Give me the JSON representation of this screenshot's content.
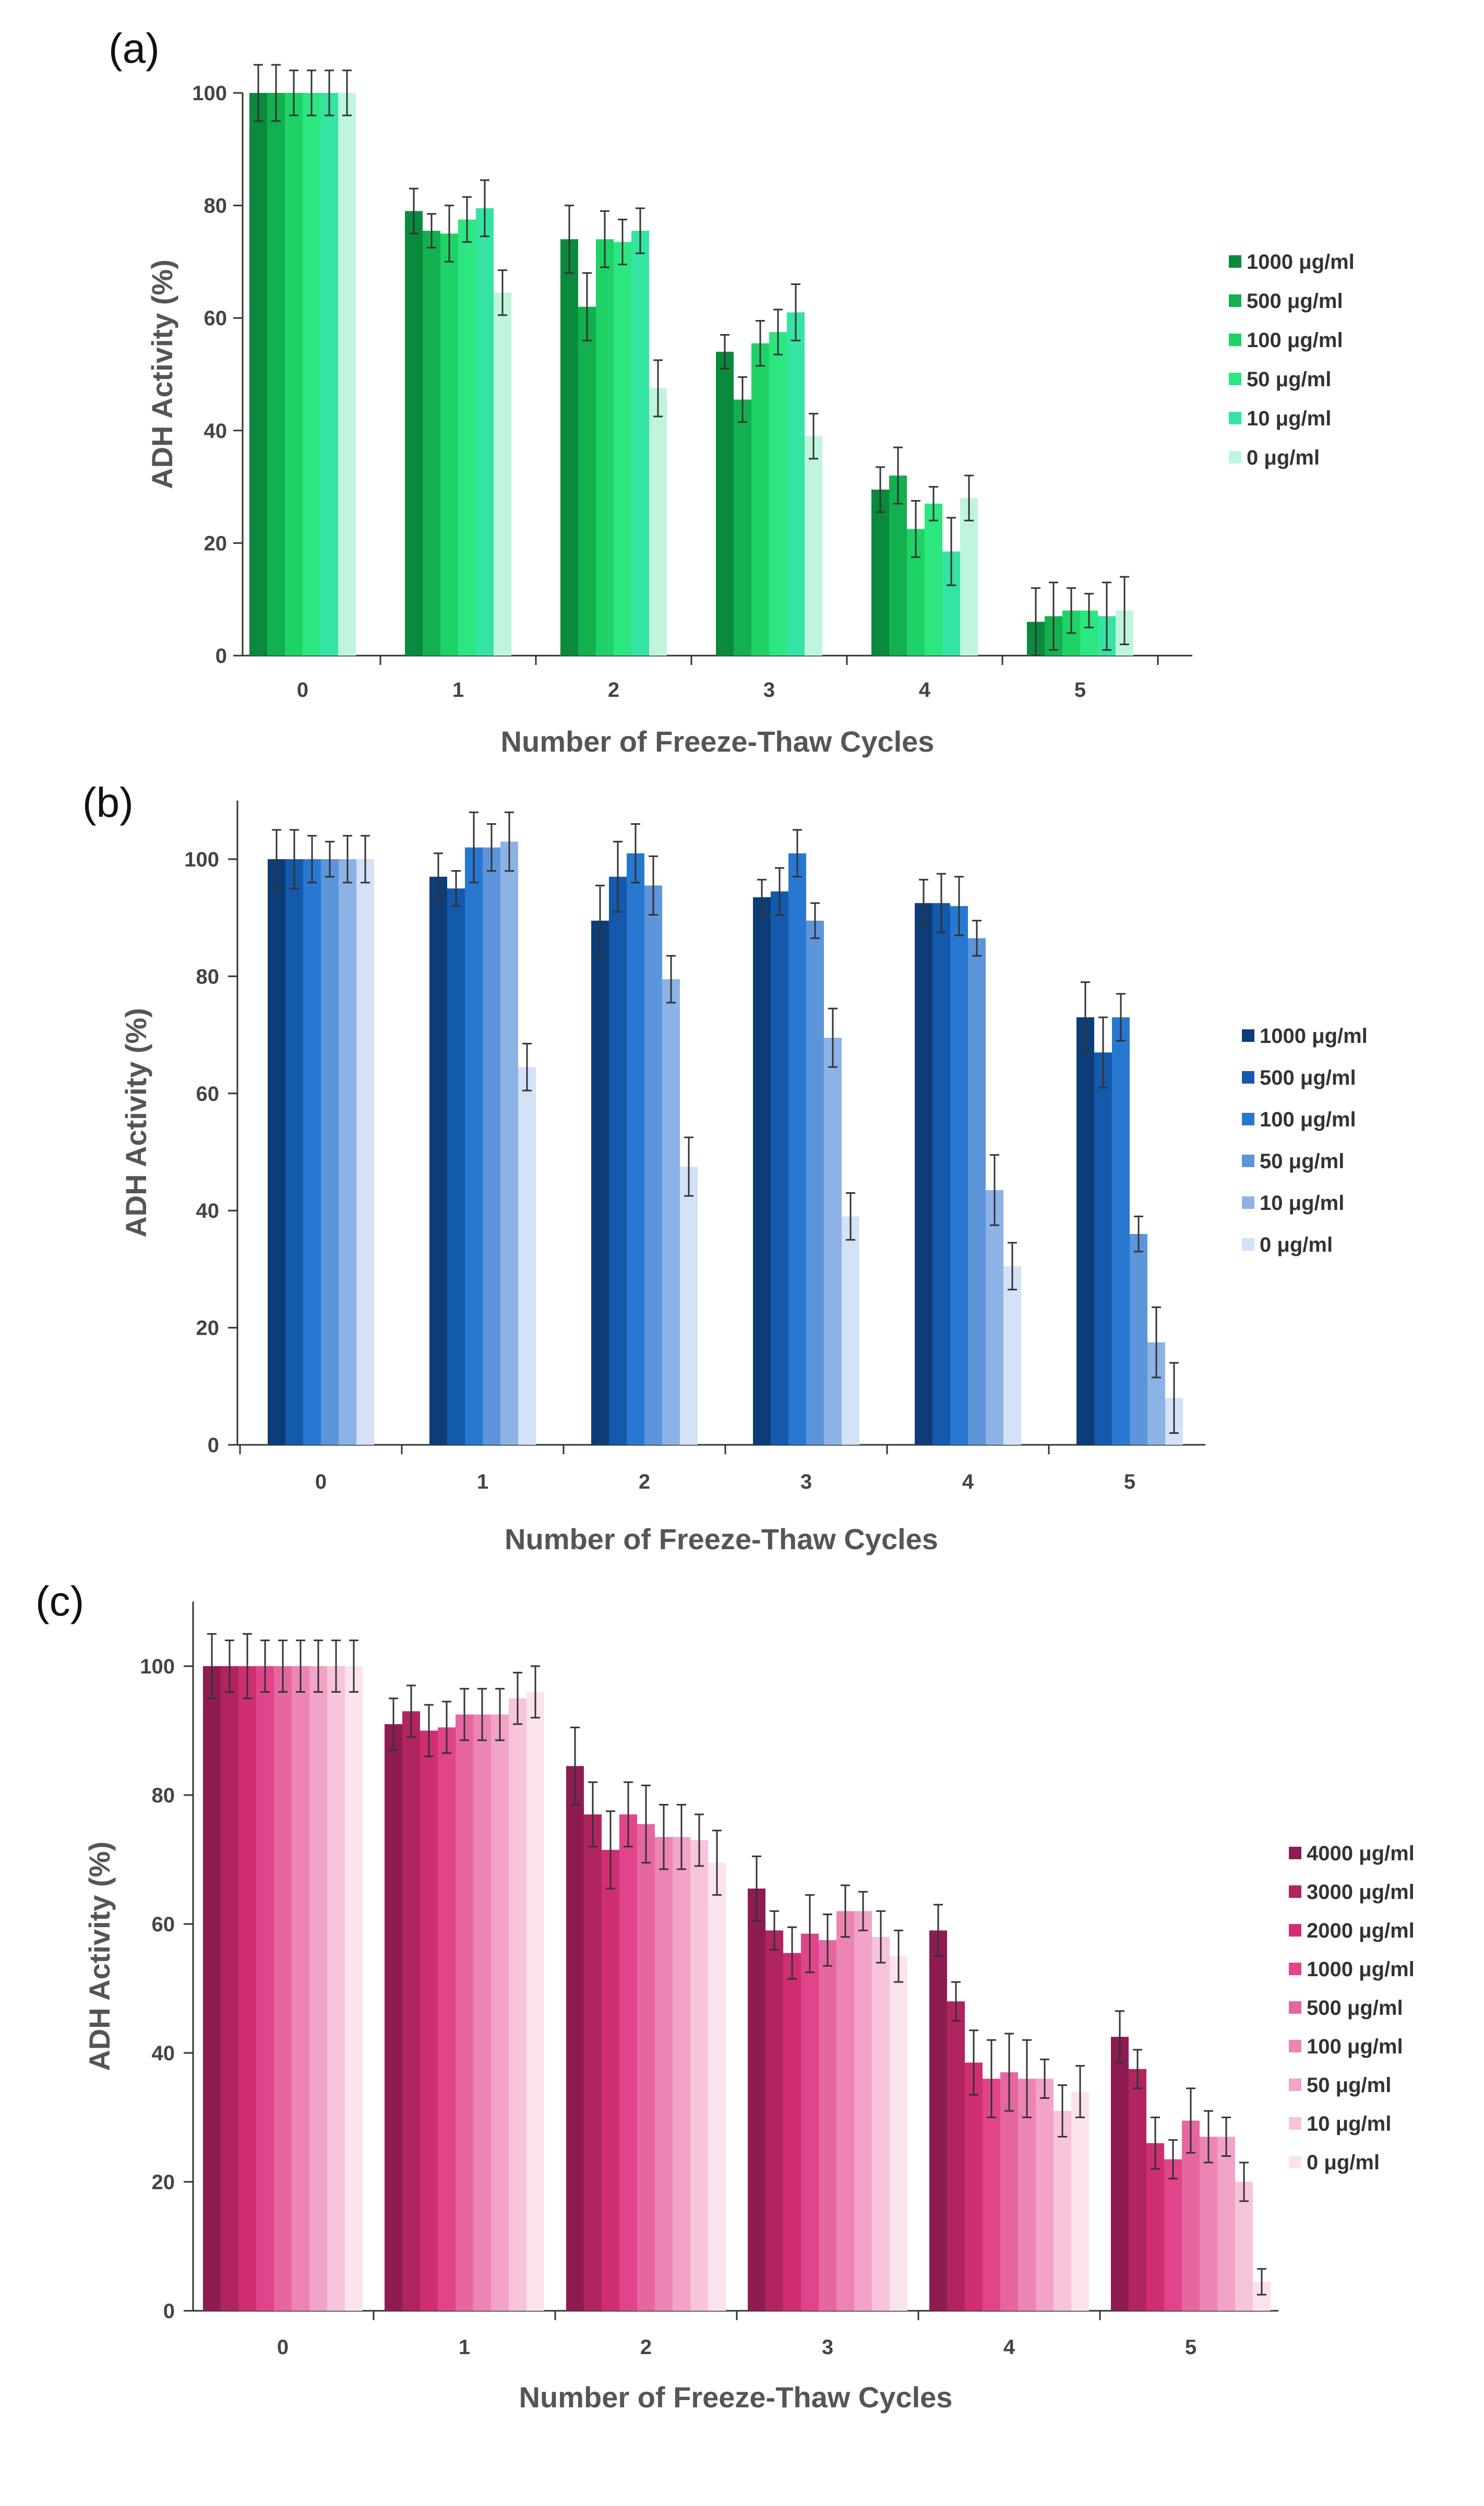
{
  "chart_data": [
    {
      "panel_label": "(a)",
      "type": "bar",
      "xlabel": "Number of Freeze-Thaw Cycles",
      "ylabel": "ADH Activity (%)",
      "categories": [
        "0",
        "1",
        "2",
        "3",
        "4",
        "5"
      ],
      "ylim": [
        0,
        100
      ],
      "yticks": [
        0,
        20,
        40,
        60,
        80,
        100
      ],
      "legend_position": "right",
      "series": [
        {
          "name": "1000 μg/ml",
          "color": "#0a8a3c",
          "values": [
            100,
            79,
            74,
            54,
            29.5,
            6
          ],
          "errors": [
            5,
            4,
            6,
            3,
            4,
            6
          ]
        },
        {
          "name": "500 μg/ml",
          "color": "#12b04e",
          "values": [
            100,
            75.5,
            62,
            45.5,
            32,
            7
          ],
          "errors": [
            5,
            3,
            6,
            4,
            5,
            6
          ]
        },
        {
          "name": "100 μg/ml",
          "color": "#1fd266",
          "values": [
            100,
            75,
            74,
            55.5,
            22.5,
            8
          ],
          "errors": [
            4,
            5,
            5,
            4,
            5,
            4
          ]
        },
        {
          "name": "50 μg/ml",
          "color": "#2ce680",
          "values": [
            100,
            77.5,
            73.5,
            57.5,
            27,
            8
          ],
          "errors": [
            4,
            4,
            4,
            4,
            3,
            3
          ]
        },
        {
          "name": "10 μg/ml",
          "color": "#35e3a2",
          "values": [
            100,
            79.5,
            75.5,
            61,
            18.5,
            7
          ],
          "errors": [
            4,
            5,
            4,
            5,
            6,
            6
          ]
        },
        {
          "name": "0 μg/ml",
          "color": "#bff5dc",
          "values": [
            100,
            64.5,
            47.5,
            39,
            28,
            8
          ],
          "errors": [
            4,
            4,
            5,
            4,
            4,
            6
          ]
        }
      ]
    },
    {
      "panel_label": "(b)",
      "type": "bar",
      "xlabel": "Number of Freeze-Thaw Cycles",
      "ylabel": "ADH Activity (%)",
      "categories": [
        "0",
        "1",
        "2",
        "3",
        "4",
        "5"
      ],
      "ylim": [
        0,
        110
      ],
      "yticks": [
        0,
        20,
        40,
        60,
        80,
        100
      ],
      "legend_position": "right",
      "series": [
        {
          "name": "1000 μg/ml",
          "color": "#0d3d78",
          "values": [
            100,
            97,
            89.5,
            93.5,
            92.5,
            73
          ],
          "errors": [
            5,
            4,
            6,
            3,
            4,
            6
          ]
        },
        {
          "name": "500 μg/ml",
          "color": "#1459ab",
          "values": [
            100,
            95,
            97,
            94.5,
            92.5,
            67
          ],
          "errors": [
            5,
            3,
            6,
            4,
            5,
            6
          ]
        },
        {
          "name": "100 μg/ml",
          "color": "#2878d2",
          "values": [
            100,
            102,
            101,
            101,
            92,
            73
          ],
          "errors": [
            4,
            6,
            5,
            4,
            5,
            4
          ]
        },
        {
          "name": "50 μg/ml",
          "color": "#5c95d9",
          "values": [
            100,
            102,
            95.5,
            89.5,
            86.5,
            36
          ],
          "errors": [
            3,
            4,
            5,
            3,
            3,
            3
          ]
        },
        {
          "name": "10 μg/ml",
          "color": "#8db3e6",
          "values": [
            100,
            103,
            79.5,
            69.5,
            43.5,
            17.5
          ],
          "errors": [
            4,
            5,
            4,
            5,
            6,
            6
          ]
        },
        {
          "name": "0 μg/ml",
          "color": "#d3e2f6",
          "values": [
            100,
            64.5,
            47.5,
            39,
            30.5,
            8
          ],
          "errors": [
            4,
            4,
            5,
            4,
            4,
            6
          ]
        }
      ]
    },
    {
      "panel_label": "(c)",
      "type": "bar",
      "xlabel": "Number of Freeze-Thaw Cycles",
      "ylabel": "ADH Activity (%)",
      "categories": [
        "0",
        "1",
        "2",
        "3",
        "4",
        "5"
      ],
      "ylim": [
        0,
        110
      ],
      "yticks": [
        0,
        20,
        40,
        60,
        80,
        100
      ],
      "legend_position": "right",
      "series": [
        {
          "name": "4000 μg/ml",
          "color": "#8e1c52",
          "values": [
            100,
            91,
            84.5,
            65.5,
            59,
            42.5
          ],
          "errors": [
            5,
            4,
            6,
            5,
            4,
            4
          ]
        },
        {
          "name": "3000 μg/ml",
          "color": "#b0245f",
          "values": [
            100,
            93,
            77,
            59,
            48,
            37.5
          ],
          "errors": [
            4,
            4,
            5,
            3,
            3,
            3
          ]
        },
        {
          "name": "2000 μg/ml",
          "color": "#cf2f72",
          "values": [
            100,
            90,
            71.5,
            55.5,
            38.5,
            26
          ],
          "errors": [
            5,
            4,
            6,
            4,
            5,
            4
          ]
        },
        {
          "name": "1000 μg/ml",
          "color": "#e0448a",
          "values": [
            100,
            90.5,
            77,
            58.5,
            36,
            23.5
          ],
          "errors": [
            4,
            4,
            5,
            6,
            6,
            3
          ]
        },
        {
          "name": "500 μg/ml",
          "color": "#e6679f",
          "values": [
            100,
            92.5,
            75.5,
            57.5,
            37,
            29.5
          ],
          "errors": [
            4,
            4,
            6,
            4,
            6,
            5
          ]
        },
        {
          "name": "100 μg/ml",
          "color": "#ec85b3",
          "values": [
            100,
            92.5,
            73.5,
            62,
            36,
            27
          ],
          "errors": [
            4,
            4,
            5,
            4,
            6,
            4
          ]
        },
        {
          "name": "50 μg/ml",
          "color": "#f2a3c7",
          "values": [
            100,
            92.5,
            73.5,
            62,
            36,
            27
          ],
          "errors": [
            4,
            4,
            5,
            3,
            3,
            3
          ]
        },
        {
          "name": "10 μg/ml",
          "color": "#f7c4dc",
          "values": [
            100,
            95,
            73,
            58,
            31,
            20
          ],
          "errors": [
            4,
            4,
            4,
            4,
            4,
            3
          ]
        },
        {
          "name": "0 μg/ml",
          "color": "#fbe3ee",
          "values": [
            100,
            96,
            69.5,
            55,
            34,
            4.5
          ],
          "errors": [
            4,
            4,
            5,
            4,
            4,
            2
          ]
        }
      ]
    }
  ]
}
